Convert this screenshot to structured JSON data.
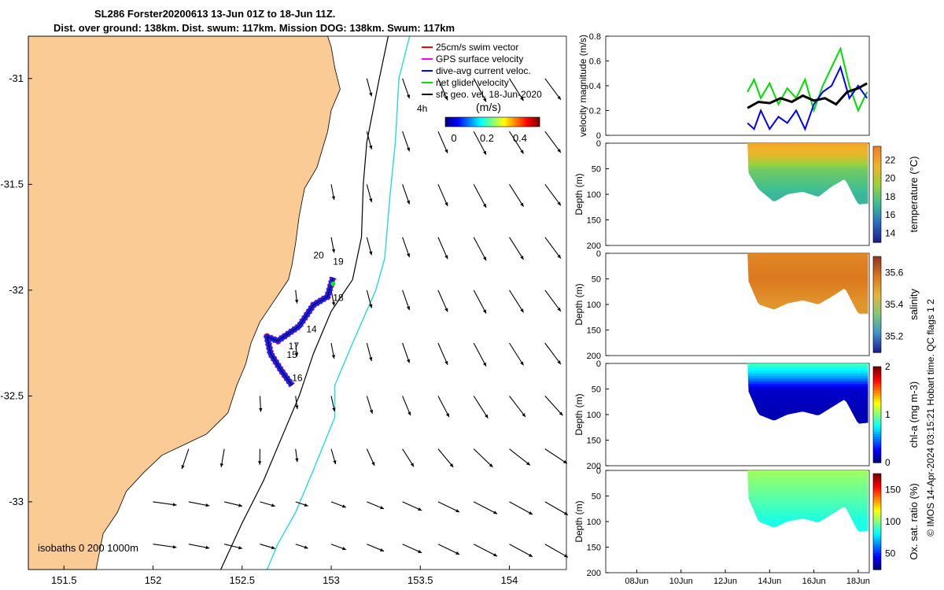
{
  "header": {
    "title_line1": "SL286 Forster20200613 13-Jun 01Z to 18-Jun 11Z.",
    "title_line2": "Dist. over ground: 138km. Dist. swum: 117km. Mission DOG: 138km. Swum: 117km"
  },
  "map": {
    "colors": {
      "land": "#fbcb96",
      "track_red": "#ff1a1a",
      "track_blue": "#1a1aff",
      "track_green": "#22dd22",
      "isobath_cyan": "#22dddd"
    },
    "x_ticks": [
      "151.5",
      "152",
      "152.5",
      "153",
      "153.5",
      "154"
    ],
    "y_ticks": [
      "-31",
      "-31.5",
      "-32",
      "-32.5",
      "-33"
    ],
    "x_tick_values": [
      151.5,
      152,
      152.5,
      153,
      153.5,
      154
    ],
    "y_tick_values": [
      -31,
      -31.5,
      -32,
      -32.5,
      -33
    ],
    "lon_range": [
      151.3,
      154.32
    ],
    "lat_range": [
      -33.32,
      -30.8
    ],
    "legend": [
      {
        "label": "25cm/s swim vector",
        "color": "#ff0000"
      },
      {
        "label": "GPS surface velocity",
        "color": "#ff00ff"
      },
      {
        "label": "dive-avg current veloc.",
        "color": "#0000ff"
      },
      {
        "label": "net glider velocity",
        "color": "#00dd00"
      },
      {
        "label": "sfc geo. vel. 18-Jun-2020",
        "color": "#000000"
      }
    ],
    "colorbar": {
      "label": "(m/s)",
      "ticks": [
        "0",
        "0.2",
        "0.4"
      ],
      "note": "4h"
    },
    "day_labels": [
      {
        "text": "20",
        "lon": 152.9,
        "lat": -31.85
      },
      {
        "text": "19",
        "lon": 153.01,
        "lat": -31.88
      },
      {
        "text": "18",
        "lon": 153.01,
        "lat": -32.05
      },
      {
        "text": "14",
        "lon": 152.86,
        "lat": -32.2
      },
      {
        "text": "17",
        "lon": 152.76,
        "lat": -32.28
      },
      {
        "text": "15",
        "lon": 152.75,
        "lat": -32.32
      },
      {
        "text": "16",
        "lon": 152.78,
        "lat": -32.43
      }
    ],
    "isobaths_note": "isobaths  0   200  1000m"
  },
  "side_panels": {
    "time_ticks": [
      "08Jun",
      "10Jun",
      "12Jun",
      "14Jun",
      "16Jun",
      "18Jun"
    ],
    "velocity": {
      "ylabel": "velocity magnitude (m/s)",
      "yticks": [
        "0",
        "0.2",
        "0.4",
        "0.6",
        "0.8"
      ]
    },
    "depth_ylabel": "Depth (m)",
    "depth_ticks": [
      "0",
      "50",
      "100",
      "150",
      "200"
    ],
    "temperature": {
      "label": "temperature (°C)",
      "ticks": [
        "14",
        "16",
        "18",
        "20",
        "22"
      ]
    },
    "salinity": {
      "label": "salinity",
      "ticks": [
        "35.2",
        "35.4",
        "35.6"
      ]
    },
    "chla": {
      "label": "chl-a (mg m-3)",
      "ticks": [
        "0",
        "1",
        "2"
      ]
    },
    "oxygen": {
      "label": "Ox. sat. ratio (%)",
      "ticks": [
        "50",
        "100",
        "150"
      ]
    },
    "credit": "© IMOS 14-Apr-2024 03:15:21 Hobart time. QC flags 1  2"
  },
  "chart_data": [
    {
      "type": "scatter",
      "title": "SL286 Forster20200613 13-Jun 01Z to 18-Jun 11Z.",
      "xlim": [
        151.3,
        154.32
      ],
      "ylim": [
        -33.32,
        -30.8
      ],
      "track": [
        {
          "lon": 152.78,
          "lat": -32.45
        },
        {
          "lon": 152.72,
          "lat": -32.38
        },
        {
          "lon": 152.66,
          "lat": -32.3
        },
        {
          "lon": 152.64,
          "lat": -32.22
        },
        {
          "lon": 152.7,
          "lat": -32.24
        },
        {
          "lon": 152.82,
          "lat": -32.17
        },
        {
          "lon": 152.9,
          "lat": -32.07
        },
        {
          "lon": 152.98,
          "lat": -32.03
        },
        {
          "lon": 153.01,
          "lat": -31.94
        }
      ]
    },
    {
      "type": "line",
      "ylabel": "velocity magnitude (m/s)",
      "ylim": [
        0,
        0.8
      ],
      "series": [
        {
          "name": "net glider velocity",
          "color": "#00dd00",
          "x": [
            13.0,
            13.3,
            13.6,
            14.0,
            14.4,
            14.8,
            15.2,
            15.6,
            16.0,
            16.4,
            16.8,
            17.2,
            17.6,
            18.0,
            18.4
          ],
          "values": [
            0.35,
            0.45,
            0.3,
            0.42,
            0.25,
            0.38,
            0.3,
            0.45,
            0.2,
            0.4,
            0.55,
            0.7,
            0.4,
            0.2,
            0.35
          ]
        },
        {
          "name": "dive-avg current veloc.",
          "color": "#0000ff",
          "x": [
            13.0,
            13.3,
            13.6,
            14.0,
            14.4,
            14.8,
            15.2,
            15.6,
            16.0,
            16.4,
            16.8,
            17.2,
            17.6,
            18.0,
            18.4
          ],
          "values": [
            0.1,
            0.05,
            0.2,
            0.05,
            0.15,
            0.1,
            0.2,
            0.05,
            0.25,
            0.35,
            0.4,
            0.55,
            0.3,
            0.4,
            0.3
          ]
        },
        {
          "name": "sfc geo. vel. 18-Jun-2020",
          "color": "#000000",
          "x": [
            13.0,
            13.5,
            14.0,
            14.5,
            15.0,
            15.5,
            16.0,
            16.5,
            17.0,
            17.5,
            18.0,
            18.4
          ],
          "values": [
            0.22,
            0.27,
            0.26,
            0.3,
            0.27,
            0.32,
            0.28,
            0.3,
            0.25,
            0.35,
            0.38,
            0.42
          ]
        }
      ]
    },
    {
      "type": "heatmap",
      "ylabel": "Depth (m)",
      "colorbar_label": "temperature (°C)",
      "color_range": [
        13,
        23.5
      ],
      "ylim": [
        0,
        200
      ],
      "time_range": [
        13.0,
        18.45
      ],
      "layers": [
        {
          "depth": 0,
          "value": 22
        },
        {
          "depth": 25,
          "value": 21
        },
        {
          "depth": 50,
          "value": 18.5
        },
        {
          "depth": 100,
          "value": 17
        }
      ],
      "bottom_depth": [
        {
          "day": 13.0,
          "depth": 55
        },
        {
          "day": 13.5,
          "depth": 90
        },
        {
          "day": 14.2,
          "depth": 115
        },
        {
          "day": 14.8,
          "depth": 100
        },
        {
          "day": 15.5,
          "depth": 95
        },
        {
          "day": 16.2,
          "depth": 105
        },
        {
          "day": 16.8,
          "depth": 85
        },
        {
          "day": 17.4,
          "depth": 70
        },
        {
          "day": 18.0,
          "depth": 120
        },
        {
          "day": 18.45,
          "depth": 118
        }
      ]
    },
    {
      "type": "heatmap",
      "ylabel": "Depth (m)",
      "colorbar_label": "salinity",
      "color_range": [
        35.1,
        35.7
      ],
      "ylim": [
        0,
        200
      ],
      "time_range": [
        13.0,
        18.45
      ],
      "layers": [
        {
          "depth": 0,
          "value": 35.55
        },
        {
          "depth": 50,
          "value": 35.58
        },
        {
          "depth": 100,
          "value": 35.52
        }
      ],
      "bottom_depth": [
        {
          "day": 13.0,
          "depth": 50
        },
        {
          "day": 13.5,
          "depth": 100
        },
        {
          "day": 14.2,
          "depth": 110
        },
        {
          "day": 14.8,
          "depth": 98
        },
        {
          "day": 15.5,
          "depth": 92
        },
        {
          "day": 16.2,
          "depth": 100
        },
        {
          "day": 16.8,
          "depth": 85
        },
        {
          "day": 17.4,
          "depth": 68
        },
        {
          "day": 18.0,
          "depth": 118
        },
        {
          "day": 18.45,
          "depth": 118
        }
      ]
    },
    {
      "type": "heatmap",
      "ylabel": "Depth (m)",
      "colorbar_label": "chl-a (mg m-3)",
      "color_range": [
        0,
        2
      ],
      "ylim": [
        0,
        200
      ],
      "time_range": [
        13.0,
        18.45
      ],
      "layers": [
        {
          "depth": 0,
          "value": 0.9
        },
        {
          "depth": 25,
          "value": 0.6
        },
        {
          "depth": 50,
          "value": 0.15
        },
        {
          "depth": 100,
          "value": 0.1
        }
      ],
      "bottom_depth": [
        {
          "day": 13.0,
          "depth": 50
        },
        {
          "day": 13.5,
          "depth": 100
        },
        {
          "day": 14.2,
          "depth": 112
        },
        {
          "day": 14.8,
          "depth": 100
        },
        {
          "day": 15.5,
          "depth": 94
        },
        {
          "day": 16.2,
          "depth": 102
        },
        {
          "day": 16.8,
          "depth": 86
        },
        {
          "day": 17.4,
          "depth": 70
        },
        {
          "day": 18.0,
          "depth": 118
        },
        {
          "day": 18.45,
          "depth": 116
        }
      ]
    },
    {
      "type": "heatmap",
      "ylabel": "Depth (m)",
      "colorbar_label": "Ox. sat. ratio (%)",
      "color_range": [
        25,
        175
      ],
      "ylim": [
        0,
        200
      ],
      "time_range": [
        13.0,
        18.45
      ],
      "layers": [
        {
          "depth": 0,
          "value": 105
        },
        {
          "depth": 50,
          "value": 95
        },
        {
          "depth": 100,
          "value": 85
        }
      ],
      "bottom_depth": [
        {
          "day": 13.0,
          "depth": 50
        },
        {
          "day": 13.5,
          "depth": 100
        },
        {
          "day": 14.2,
          "depth": 112
        },
        {
          "day": 14.8,
          "depth": 100
        },
        {
          "day": 15.5,
          "depth": 94
        },
        {
          "day": 16.2,
          "depth": 102
        },
        {
          "day": 16.8,
          "depth": 86
        },
        {
          "day": 17.4,
          "depth": 70
        },
        {
          "day": 18.0,
          "depth": 120
        },
        {
          "day": 18.45,
          "depth": 118
        }
      ]
    }
  ]
}
